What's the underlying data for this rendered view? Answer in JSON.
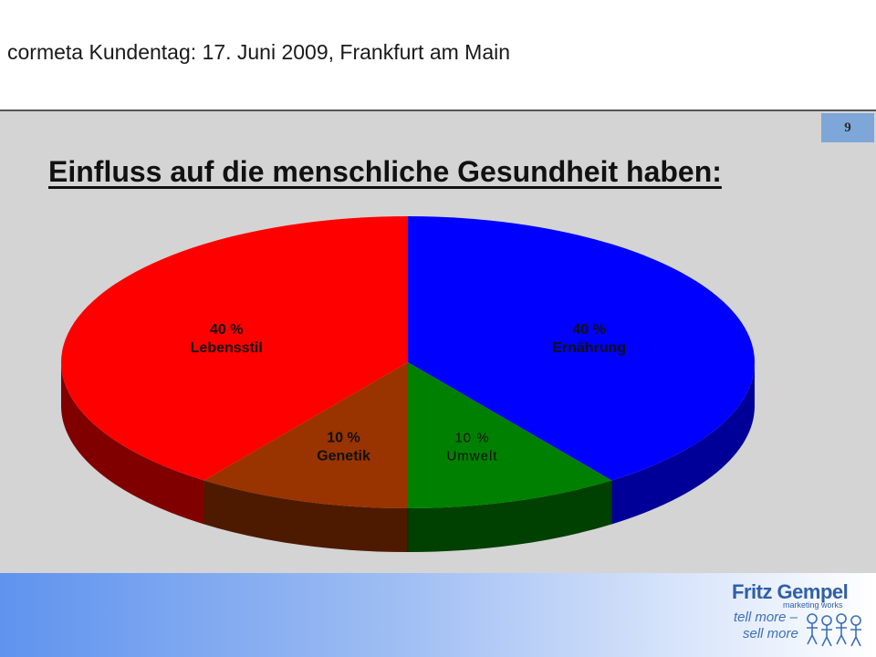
{
  "header": {
    "title": "cormeta Kundentag: 17. Juni 2009, Frankfurt am Main"
  },
  "slide": {
    "page_number": "9",
    "heading": "Einfluss auf die menschliche Gesundheit haben:"
  },
  "chart_data": {
    "type": "pie",
    "style": "3d",
    "slices": [
      {
        "label": "Ernährung",
        "value": 40,
        "value_label": "40 %",
        "color": "#0000ff",
        "side_color": "#000099"
      },
      {
        "label": "Umwelt",
        "value": 10,
        "value_label": "10 %",
        "color": "#008000",
        "side_color": "#004000"
      },
      {
        "label": "Genetik",
        "value": 10,
        "value_label": "10 %",
        "color": "#993300",
        "side_color": "#4d1a00"
      },
      {
        "label": "Lebensstil",
        "value": 40,
        "value_label": "40 %",
        "color": "#ff0000",
        "side_color": "#800000"
      }
    ]
  },
  "footer": {
    "logo_name": "Fritz Gempel",
    "logo_tagline": "marketing works",
    "slogan_line1": "tell more –",
    "slogan_line2": "sell more"
  }
}
